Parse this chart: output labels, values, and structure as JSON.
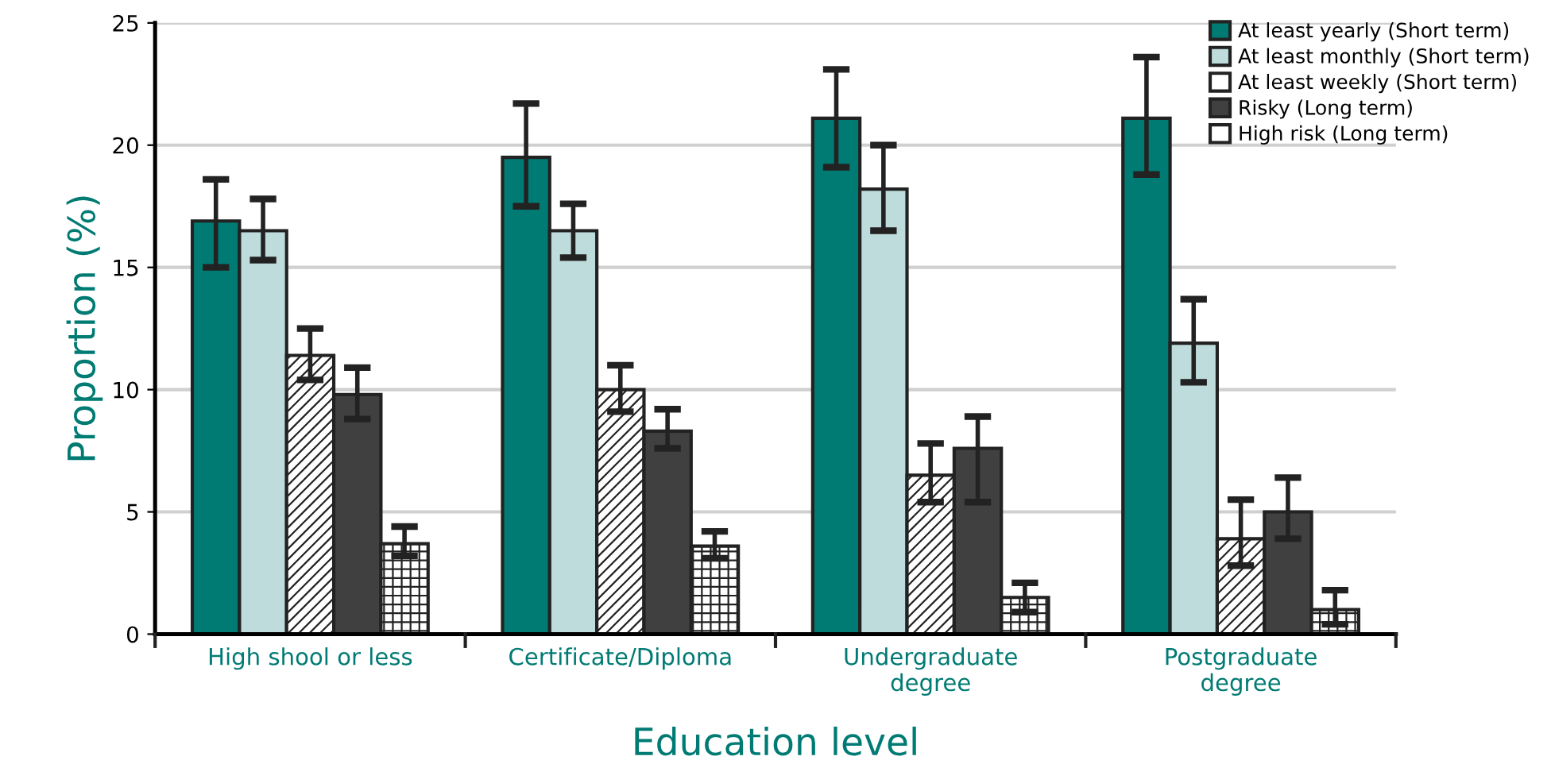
{
  "chart_data": {
    "type": "bar",
    "xlabel": "Education level",
    "ylabel": "Proportion (%)",
    "categories": [
      "High shool or less",
      "Certificate/Diploma",
      "Undergraduate\ndegree",
      "Postgraduate\ndegree"
    ],
    "series": [
      {
        "name": "At least yearly (Short term)",
        "color": "#007b73",
        "values": [
          16.9,
          19.5,
          21.1,
          21.1
        ],
        "errors": [
          [
            15.0,
            18.6
          ],
          [
            17.5,
            21.7
          ],
          [
            19.1,
            23.1
          ],
          [
            18.8,
            23.6
          ]
        ]
      },
      {
        "name": "At least monthly (Short term)",
        "color": "#bedcdb",
        "values": [
          16.5,
          16.5,
          18.2,
          11.9
        ],
        "errors": [
          [
            15.3,
            17.8
          ],
          [
            15.4,
            17.6
          ],
          [
            16.5,
            20.0
          ],
          [
            10.3,
            13.7
          ]
        ]
      },
      {
        "name": "At least weekly (Short term)",
        "color": "#ffffff",
        "values": [
          11.4,
          10.0,
          6.5,
          3.9
        ],
        "errors": [
          [
            10.4,
            12.5
          ],
          [
            9.1,
            11.0
          ],
          [
            5.4,
            7.8
          ],
          [
            2.8,
            5.5
          ]
        ]
      },
      {
        "name": "Risky (Long term)",
        "color": "#404040",
        "values": [
          9.8,
          8.3,
          7.6,
          5.0
        ],
        "errors": [
          [
            8.8,
            10.9
          ],
          [
            7.6,
            9.2
          ],
          [
            5.4,
            8.9
          ],
          [
            3.9,
            6.4
          ]
        ]
      },
      {
        "name": "High risk (Long term)",
        "color": "#ffffff",
        "values": [
          3.7,
          3.6,
          1.5,
          1.0
        ],
        "errors": [
          [
            3.2,
            4.4
          ],
          [
            3.1,
            4.2
          ],
          [
            0.9,
            2.1
          ],
          [
            0.4,
            1.8
          ]
        ]
      }
    ],
    "ylim": [
      0,
      25
    ],
    "yticks": [
      0,
      5,
      10,
      15,
      20,
      25
    ],
    "grid": "y",
    "legend": "top right"
  }
}
